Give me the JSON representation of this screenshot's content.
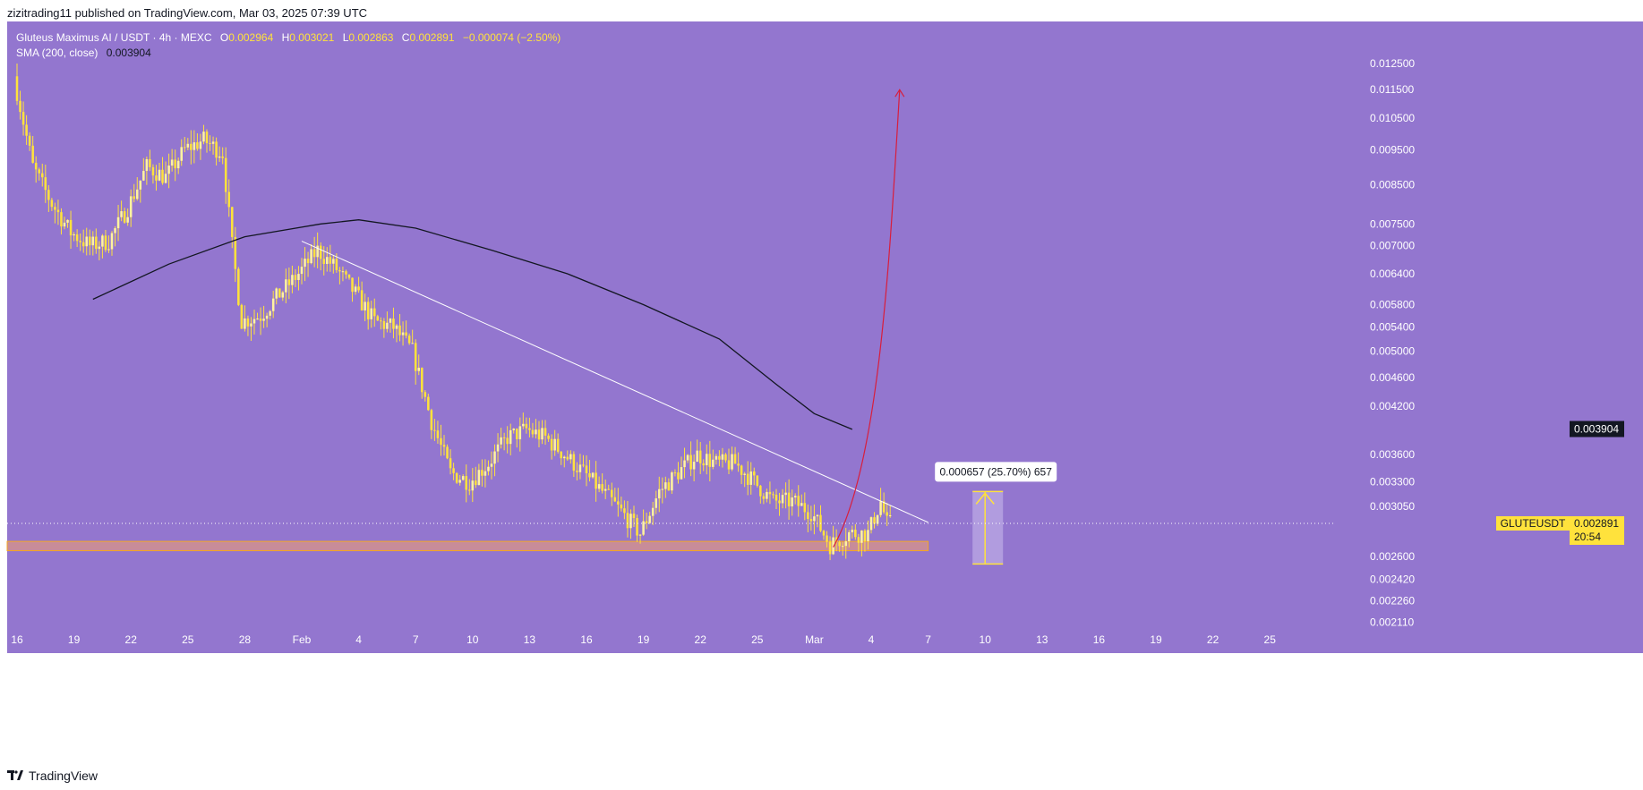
{
  "publisher_line": "zizitrading11 published on TradingView.com, Mar 03, 2025 07:39 UTC",
  "legend": {
    "title": "Gluteus Maximus AI / USDT · 4h · MEXC",
    "open_key": "O",
    "open": "0.002964",
    "high_key": "H",
    "high": "0.003021",
    "low_key": "L",
    "low": "0.002863",
    "close_key": "C",
    "close": "0.002891",
    "change": "−0.000074 (−2.50%)",
    "sma_label": "SMA (200, close)",
    "sma_value": "0.003904"
  },
  "footer": {
    "brand": "TradingView"
  },
  "colors": {
    "background": "#9376cf",
    "candle": "#ffe23c",
    "sma": "#131722",
    "trendline": "#ffffff",
    "projection": "#d81e3c",
    "support_zone": "#c88c99",
    "support_border": "#f5a623",
    "measure": "#ffe23c"
  },
  "chart_data": {
    "type": "candlestick",
    "symbol": "GLUTEUSDT",
    "timeframe": "4h",
    "y_scale": "log",
    "price_axis_labels": [
      "0.012500",
      "0.011500",
      "0.010500",
      "0.009500",
      "0.008500",
      "0.007500",
      "0.007000",
      "0.006400",
      "0.005800",
      "0.005400",
      "0.005000",
      "0.004600",
      "0.004200",
      "0.003600",
      "0.003300",
      "0.003050",
      "0.002600",
      "0.002420",
      "0.002260",
      "0.002110"
    ],
    "time_axis_labels": [
      "16",
      "19",
      "22",
      "25",
      "28",
      "Feb",
      "4",
      "7",
      "10",
      "13",
      "16",
      "19",
      "22",
      "25",
      "Mar",
      "4",
      "7",
      "10",
      "13",
      "16",
      "19",
      "22",
      "25"
    ],
    "last_price": {
      "label": "GLUTEUSDT",
      "value": "0.002891",
      "countdown": "20:54"
    },
    "sma_price_tag": "0.003904",
    "path_points": [
      [
        "2025-01-16",
        0.012
      ],
      [
        "2025-01-17",
        0.009
      ],
      [
        "2025-01-18",
        0.008
      ],
      [
        "2025-01-19",
        0.0073
      ],
      [
        "2025-01-20",
        0.007
      ],
      [
        "2025-01-21",
        0.0071
      ],
      [
        "2025-01-22",
        0.0079
      ],
      [
        "2025-01-23",
        0.009
      ],
      [
        "2025-01-24",
        0.0087
      ],
      [
        "2025-01-25",
        0.0095
      ],
      [
        "2025-01-26",
        0.0098
      ],
      [
        "2025-01-27",
        0.0094
      ],
      [
        "2025-01-27T12",
        0.007
      ],
      [
        "2025-01-28",
        0.0055
      ],
      [
        "2025-01-29",
        0.0056
      ],
      [
        "2025-01-30",
        0.006
      ],
      [
        "2025-01-31",
        0.0064
      ],
      [
        "2025-02-01",
        0.0069
      ],
      [
        "2025-02-02",
        0.0065
      ],
      [
        "2025-02-03",
        0.006
      ],
      [
        "2025-02-04",
        0.0055
      ],
      [
        "2025-02-05",
        0.0054
      ],
      [
        "2025-02-06",
        0.005
      ],
      [
        "2025-02-07",
        0.004
      ],
      [
        "2025-02-08",
        0.0034
      ],
      [
        "2025-02-09",
        0.0033
      ],
      [
        "2025-02-10",
        0.0035
      ],
      [
        "2025-02-11",
        0.0038
      ],
      [
        "2025-02-12",
        0.0039
      ],
      [
        "2025-02-13",
        0.0038
      ],
      [
        "2025-02-14",
        0.0036
      ],
      [
        "2025-02-15",
        0.0034
      ],
      [
        "2025-02-16",
        0.0032
      ],
      [
        "2025-02-17",
        0.003
      ],
      [
        "2025-02-18",
        0.0028
      ],
      [
        "2025-02-19",
        0.0032
      ],
      [
        "2025-02-20",
        0.0034
      ],
      [
        "2025-02-21",
        0.0036
      ],
      [
        "2025-02-22",
        0.0035
      ],
      [
        "2025-02-23",
        0.0035
      ],
      [
        "2025-02-24",
        0.0033
      ],
      [
        "2025-02-25",
        0.0031
      ],
      [
        "2025-02-26",
        0.0031
      ],
      [
        "2025-02-27",
        0.003
      ],
      [
        "2025-02-28",
        0.0027
      ],
      [
        "2025-03-01",
        0.0028
      ],
      [
        "2025-03-02",
        0.0028
      ],
      [
        "2025-03-02T16",
        0.0031
      ],
      [
        "2025-03-03",
        0.00289
      ]
    ],
    "sma200_points": [
      [
        "2025-01-20",
        0.0059
      ],
      [
        "2025-01-24",
        0.0066
      ],
      [
        "2025-01-28",
        0.0072
      ],
      [
        "2025-02-01",
        0.0075
      ],
      [
        "2025-02-03",
        0.0076
      ],
      [
        "2025-02-06",
        0.0074
      ],
      [
        "2025-02-10",
        0.0069
      ],
      [
        "2025-02-14",
        0.0064
      ],
      [
        "2025-02-18",
        0.0058
      ],
      [
        "2025-02-22",
        0.0052
      ],
      [
        "2025-02-25",
        0.0045
      ],
      [
        "2025-02-27",
        0.0041
      ],
      [
        "2025-03-01",
        0.0039
      ]
    ],
    "trendline": [
      [
        "2025-01-31",
        0.0071
      ],
      [
        "2025-03-05",
        0.0029
      ]
    ],
    "support_zone": {
      "from": "2025-01-16",
      "to": "2025-03-05",
      "low": 0.00265,
      "high": 0.00273
    },
    "projection_curve": [
      [
        "2025-02-28",
        0.00268
      ],
      [
        "2025-03-02T12",
        0.0035
      ],
      [
        "2025-03-03",
        0.007
      ],
      [
        "2025-03-03T12",
        0.0115
      ]
    ],
    "measure": {
      "date": "2025-03-08",
      "low": 0.00254,
      "high": 0.0032,
      "label": "0.000657 (25.70%) 657"
    }
  }
}
